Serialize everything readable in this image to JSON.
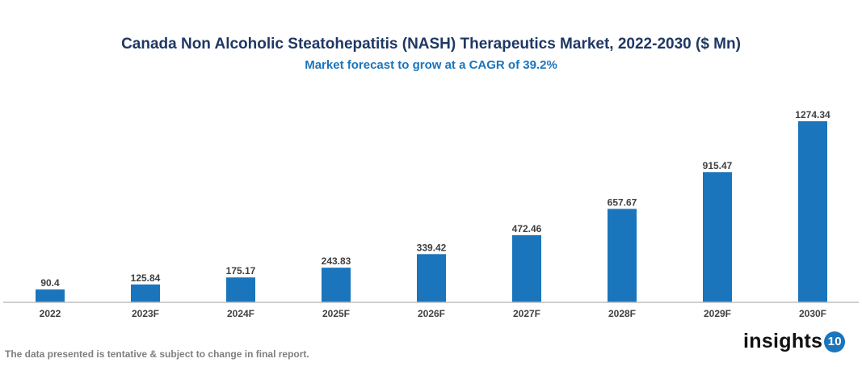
{
  "chart_data": {
    "type": "bar",
    "title": "Canada Non Alcoholic Steatohepatitis (NASH) Therapeutics Market, 2022-2030 ($ Mn)",
    "subtitle": "Market forecast to grow at a CAGR of 39.2%",
    "categories": [
      "2022",
      "2023F",
      "2024F",
      "2025F",
      "2026F",
      "2027F",
      "2028F",
      "2029F",
      "2030F"
    ],
    "values": [
      90.4,
      125.84,
      175.17,
      243.83,
      339.42,
      472.46,
      657.67,
      915.47,
      1274.34
    ],
    "value_labels": [
      "90.4",
      "125.84",
      "175.17",
      "243.83",
      "339.42",
      "472.46",
      "657.67",
      "915.47",
      "1274.34"
    ],
    "xlabel": "",
    "ylabel": "",
    "ylim": [
      0,
      1274.34
    ],
    "grid": false,
    "legend": "none",
    "bar_color": "#1a75bc"
  },
  "footer": "The data presented is tentative & subject to change in final report.",
  "logo": {
    "text": "insights",
    "badge": "10"
  }
}
